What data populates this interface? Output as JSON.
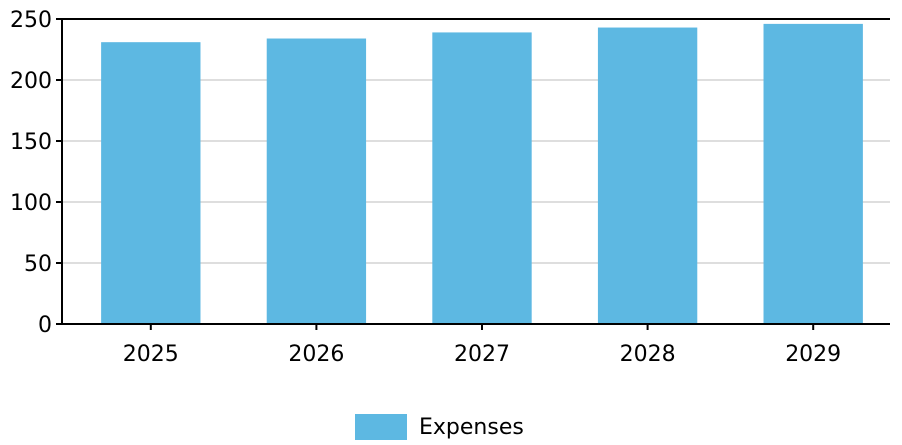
{
  "chart_data": {
    "type": "bar",
    "categories": [
      "2025",
      "2026",
      "2027",
      "2028",
      "2029"
    ],
    "series": [
      {
        "name": "Expenses",
        "values": [
          231,
          234,
          239,
          243,
          246
        ],
        "color": "#5db8e2"
      }
    ],
    "ylim": [
      0,
      250
    ],
    "yticks": [
      0,
      50,
      100,
      150,
      200,
      250
    ],
    "grid": true,
    "legend_position": "bottom-center"
  },
  "legend": {
    "label": "Expenses"
  }
}
